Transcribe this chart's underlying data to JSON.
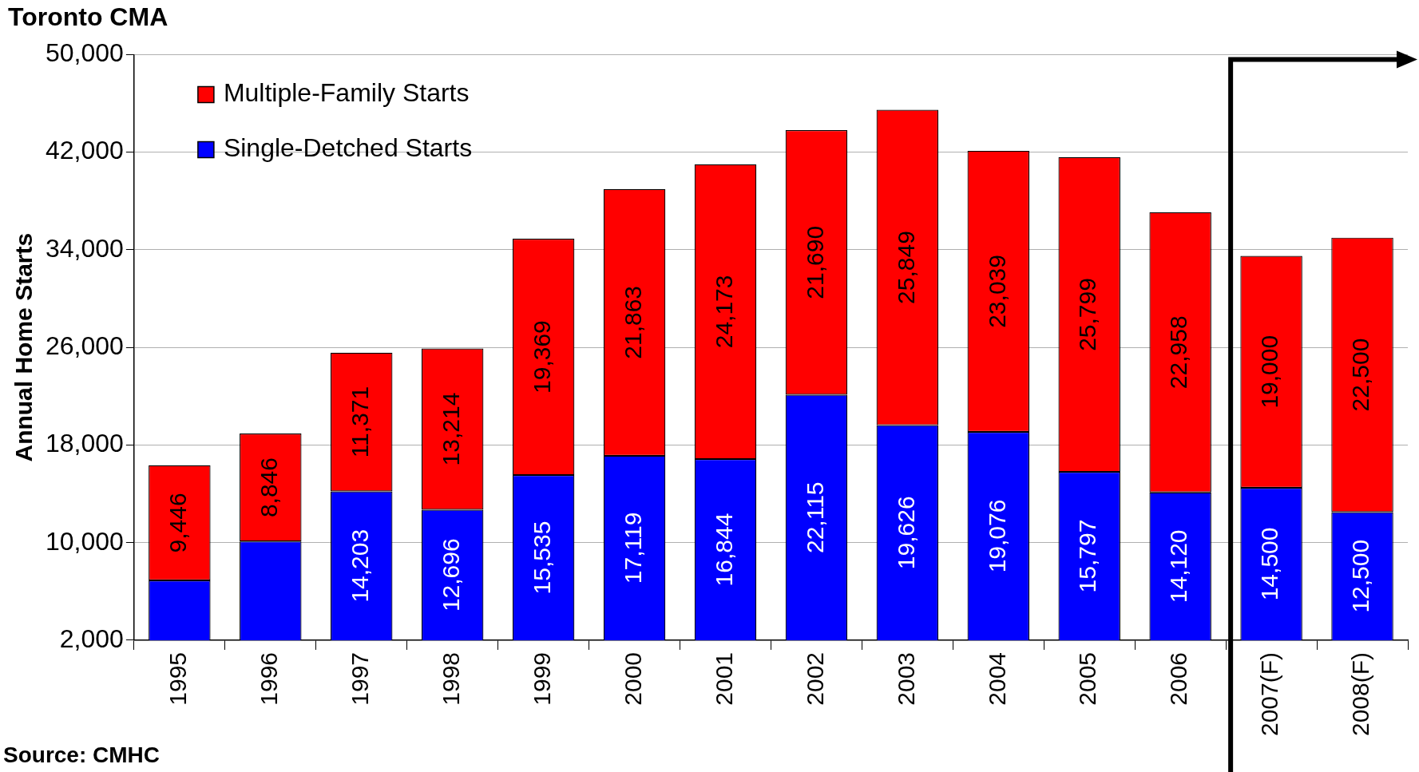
{
  "chart_data": {
    "type": "bar",
    "title": "Toronto CMA",
    "ylabel": "Annual Home Starts",
    "categories": [
      "1995",
      "1996",
      "1997",
      "1998",
      "1999",
      "2000",
      "2001",
      "2002",
      "2003",
      "2004",
      "2005",
      "2006",
      "2007(F)",
      "2008(F)"
    ],
    "series": [
      {
        "name": "Single-Detched Starts",
        "color": "#0000ff",
        "values": [
          6900,
          10100,
          14203,
          12696,
          15535,
          17119,
          16844,
          22115,
          19626,
          19076,
          15797,
          14120,
          14500,
          12500
        ],
        "value_labels": [
          null,
          null,
          "14,203",
          "12,696",
          "15,535",
          "17,119",
          "16,844",
          "22,115",
          "19,626",
          "19,076",
          "15,797",
          "14,120",
          "14,500",
          "12,500"
        ]
      },
      {
        "name": "Multiple-Family Starts",
        "color": "#ff0000",
        "values": [
          9446,
          8846,
          11371,
          13214,
          19369,
          21863,
          24173,
          21690,
          25849,
          23039,
          25799,
          22958,
          19000,
          22500
        ],
        "value_labels": [
          "9,446",
          "8,846",
          "11,371",
          "13,214",
          "19,369",
          "21,863",
          "24,173",
          "21,690",
          "25,849",
          "23,039",
          "25,799",
          "22,958",
          "19,000",
          "22,500"
        ]
      }
    ],
    "stacked": true,
    "ylim": [
      2000,
      50000
    ],
    "yticks": [
      {
        "value": 2000,
        "label": "2,000"
      },
      {
        "value": 10000,
        "label": "10,000"
      },
      {
        "value": 18000,
        "label": "18,000"
      },
      {
        "value": 26000,
        "label": "26,000"
      },
      {
        "value": 34000,
        "label": "34,000"
      },
      {
        "value": 42000,
        "label": "42,000"
      },
      {
        "value": 50000,
        "label": "50,000"
      }
    ],
    "grid": "y",
    "legend": "top left",
    "annotations": [
      "Source: CMHC"
    ]
  }
}
